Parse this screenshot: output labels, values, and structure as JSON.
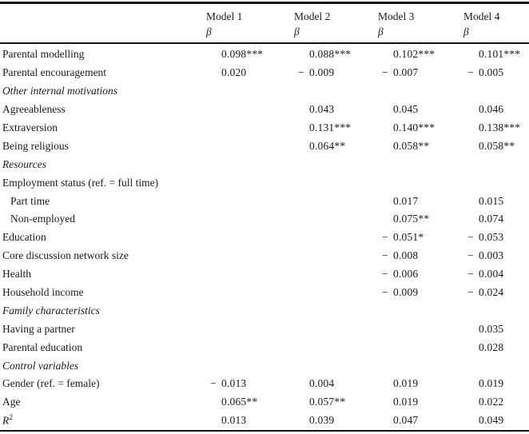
{
  "colors": {
    "background": "#fefefe",
    "text": "#1b1b1b",
    "rule": "#141414"
  },
  "table": {
    "header": {
      "col_labels": [
        "Model 1",
        "Model 2",
        "Model 3",
        "Model 4"
      ],
      "coef_symbol": "β"
    },
    "rows": [
      {
        "label": "Parental modelling",
        "type": "data",
        "values": [
          "0.098***",
          "0.088***",
          "0.102***",
          "0.101***"
        ]
      },
      {
        "label": "Parental encouragement",
        "type": "data",
        "values": [
          "0.020",
          "− 0.009",
          "− 0.007",
          "− 0.005"
        ]
      },
      {
        "label": "Other internal motivations",
        "type": "section",
        "values": [
          "",
          "",
          "",
          ""
        ]
      },
      {
        "label": "Agreeableness",
        "type": "data",
        "values": [
          "",
          "0.043",
          "0.045",
          "0.046"
        ]
      },
      {
        "label": "Extraversion",
        "type": "data",
        "values": [
          "",
          "0.131***",
          "0.140***",
          "0.138***"
        ]
      },
      {
        "label": "Being religious",
        "type": "data",
        "values": [
          "",
          "0.064**",
          "0.058**",
          "0.058**"
        ]
      },
      {
        "label": "Resources",
        "type": "section",
        "values": [
          "",
          "",
          "",
          ""
        ]
      },
      {
        "label": "Employment status (ref. = full time)",
        "type": "data",
        "values": [
          "",
          "",
          "",
          ""
        ]
      },
      {
        "label": "Part time",
        "type": "data",
        "indent": true,
        "values": [
          "",
          "",
          "0.017",
          "0.015"
        ]
      },
      {
        "label": "Non-employed",
        "type": "data",
        "indent": true,
        "values": [
          "",
          "",
          "0.075**",
          "0.074"
        ]
      },
      {
        "label": "Education",
        "type": "data",
        "values": [
          "",
          "",
          "− 0.051*",
          "− 0.053"
        ]
      },
      {
        "label": "Core discussion network size",
        "type": "data",
        "values": [
          "",
          "",
          "− 0.008",
          "− 0.003"
        ]
      },
      {
        "label": "Health",
        "type": "data",
        "values": [
          "",
          "",
          "− 0.006",
          "− 0.004"
        ]
      },
      {
        "label": "Household income",
        "type": "data",
        "values": [
          "",
          "",
          "− 0.009",
          "− 0.024"
        ]
      },
      {
        "label": "Family characteristics",
        "type": "section",
        "values": [
          "",
          "",
          "",
          ""
        ]
      },
      {
        "label": "Having a partner",
        "type": "data",
        "values": [
          "",
          "",
          "",
          "0.035"
        ]
      },
      {
        "label": "Parental education",
        "type": "data",
        "values": [
          "",
          "",
          "",
          "0.028"
        ]
      },
      {
        "label": "Control variables",
        "type": "section",
        "values": [
          "",
          "",
          "",
          ""
        ]
      },
      {
        "label": "Gender (ref. = female)",
        "type": "data",
        "values": [
          "− 0.013",
          "0.004",
          "0.019",
          "0.019"
        ]
      },
      {
        "label": "Age",
        "type": "data",
        "values": [
          "0.065**",
          "0.057**",
          "0.019",
          "0.022"
        ]
      },
      {
        "label": "R",
        "sup": "2",
        "type": "data",
        "values": [
          "0.013",
          "0.039",
          "0.047",
          "0.049"
        ]
      }
    ]
  }
}
